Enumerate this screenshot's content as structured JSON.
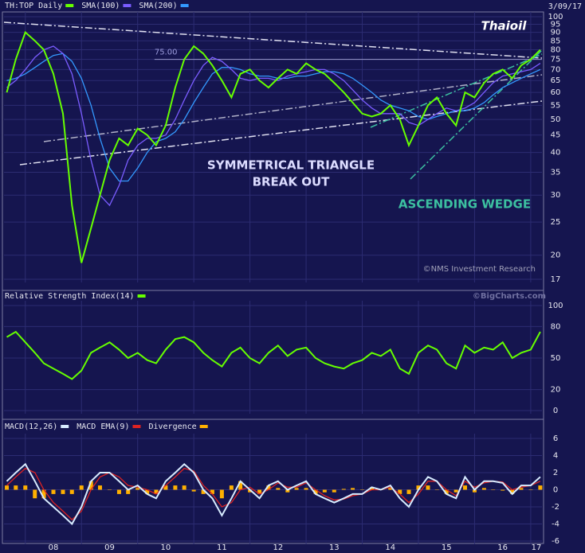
{
  "header": {
    "date": "3/09/17",
    "logo": "Thaioil",
    "copyright": "©NMS Investment Research",
    "source": "©BigCharts.com"
  },
  "chart_data": [
    {
      "type": "line",
      "log_scale": true,
      "grid": true,
      "annotations": [
        {
          "text": "SYMMETRICAL TRIANGLE"
        },
        {
          "text": "BREAK OUT"
        },
        {
          "text": "ASCENDING WEDGE"
        }
      ],
      "level": {
        "value": 75,
        "label": "75.00"
      },
      "xlim": [
        2007.62,
        2017.2
      ],
      "x": [
        2007.67,
        2007.83,
        2008.0,
        2008.17,
        2008.33,
        2008.5,
        2008.67,
        2008.83,
        2009.0,
        2009.17,
        2009.33,
        2009.5,
        2009.67,
        2009.83,
        2010.0,
        2010.17,
        2010.33,
        2010.5,
        2010.67,
        2010.83,
        2011.0,
        2011.17,
        2011.33,
        2011.5,
        2011.67,
        2011.83,
        2012.0,
        2012.17,
        2012.33,
        2012.5,
        2012.67,
        2012.83,
        2013.0,
        2013.17,
        2013.33,
        2013.5,
        2013.67,
        2013.83,
        2014.0,
        2014.17,
        2014.33,
        2014.5,
        2014.67,
        2014.83,
        2015.0,
        2015.17,
        2015.33,
        2015.5,
        2015.67,
        2015.83,
        2016.0,
        2016.17,
        2016.33,
        2016.5,
        2016.67,
        2016.83,
        2017.0,
        2017.17
      ],
      "ylim": [
        17,
        100
      ],
      "yticks": [
        17,
        20,
        25,
        30,
        35,
        40,
        45,
        50,
        55,
        60,
        65,
        70,
        75,
        80,
        85,
        90,
        95,
        100
      ],
      "series": [
        {
          "name": "TH:TOP Daily",
          "color": "#66ff00",
          "values": [
            60,
            75,
            90,
            85,
            80,
            68,
            52,
            28,
            19,
            24,
            30,
            38,
            44,
            42,
            47,
            45,
            42,
            48,
            62,
            75,
            82,
            78,
            72,
            65,
            58,
            68,
            70,
            65,
            62,
            66,
            70,
            68,
            73,
            70,
            68,
            64,
            60,
            56,
            52,
            51,
            52,
            55,
            50,
            42,
            48,
            55,
            58,
            52,
            48,
            60,
            58,
            64,
            68,
            70,
            66,
            72,
            75,
            80
          ]
        },
        {
          "name": "SMA(100)",
          "color": "#7a5cff",
          "values": [
            62,
            65,
            70,
            76,
            80,
            82,
            78,
            68,
            52,
            38,
            30,
            28,
            32,
            38,
            42,
            44,
            44,
            45,
            50,
            57,
            65,
            72,
            76,
            74,
            70,
            66,
            65,
            66,
            66,
            65,
            67,
            68,
            69,
            70,
            70,
            68,
            65,
            61,
            57,
            54,
            52,
            52,
            52,
            49,
            48,
            50,
            52,
            54,
            53,
            54,
            56,
            60,
            64,
            67,
            68,
            69,
            70,
            73
          ]
        },
        {
          "name": "SMA(200)",
          "color": "#3399ff",
          "values": [
            65,
            66,
            68,
            71,
            74,
            77,
            78,
            74,
            66,
            55,
            44,
            36,
            33,
            33,
            36,
            40,
            43,
            44,
            46,
            50,
            56,
            62,
            68,
            71,
            71,
            70,
            68,
            67,
            67,
            66,
            66,
            67,
            67,
            68,
            69,
            69,
            68,
            66,
            63,
            60,
            57,
            55,
            54,
            53,
            51,
            50,
            51,
            52,
            53,
            53,
            54,
            56,
            59,
            62,
            64,
            66,
            68,
            70
          ]
        }
      ]
    },
    {
      "type": "line",
      "grid": true,
      "xlim": [
        2007.62,
        2017.2
      ],
      "x": [
        2007.67,
        2007.83,
        2008.0,
        2008.17,
        2008.33,
        2008.5,
        2008.67,
        2008.83,
        2009.0,
        2009.17,
        2009.33,
        2009.5,
        2009.67,
        2009.83,
        2010.0,
        2010.17,
        2010.33,
        2010.5,
        2010.67,
        2010.83,
        2011.0,
        2011.17,
        2011.33,
        2011.5,
        2011.67,
        2011.83,
        2012.0,
        2012.17,
        2012.33,
        2012.5,
        2012.67,
        2012.83,
        2013.0,
        2013.17,
        2013.33,
        2013.5,
        2013.67,
        2013.83,
        2014.0,
        2014.17,
        2014.33,
        2014.5,
        2014.67,
        2014.83,
        2015.0,
        2015.17,
        2015.33,
        2015.5,
        2015.67,
        2015.83,
        2016.0,
        2016.17,
        2016.33,
        2016.5,
        2016.67,
        2016.83,
        2017.0,
        2017.17
      ],
      "ylim": [
        0,
        100
      ],
      "yticks": [
        0,
        20,
        50,
        80,
        100
      ],
      "series": [
        {
          "name": "Relative Strength Index(14)",
          "color": "#66ff00",
          "values": [
            70,
            75,
            65,
            55,
            45,
            40,
            35,
            30,
            38,
            55,
            60,
            65,
            58,
            50,
            55,
            48,
            45,
            58,
            68,
            70,
            65,
            55,
            48,
            42,
            55,
            60,
            50,
            45,
            55,
            62,
            52,
            58,
            60,
            50,
            45,
            42,
            40,
            45,
            48,
            55,
            52,
            58,
            40,
            35,
            55,
            62,
            58,
            45,
            40,
            62,
            55,
            60,
            58,
            65,
            50,
            55,
            58,
            75
          ]
        }
      ]
    },
    {
      "type": "line",
      "grid": true,
      "xlim": [
        2007.62,
        2017.2
      ],
      "x": [
        2007.67,
        2007.83,
        2008.0,
        2008.17,
        2008.33,
        2008.5,
        2008.67,
        2008.83,
        2009.0,
        2009.17,
        2009.33,
        2009.5,
        2009.67,
        2009.83,
        2010.0,
        2010.17,
        2010.33,
        2010.5,
        2010.67,
        2010.83,
        2011.0,
        2011.17,
        2011.33,
        2011.5,
        2011.67,
        2011.83,
        2012.0,
        2012.17,
        2012.33,
        2012.5,
        2012.67,
        2012.83,
        2013.0,
        2013.17,
        2013.33,
        2013.5,
        2013.67,
        2013.83,
        2014.0,
        2014.17,
        2014.33,
        2014.5,
        2014.67,
        2014.83,
        2015.0,
        2015.17,
        2015.33,
        2015.5,
        2015.67,
        2015.83,
        2016.0,
        2016.17,
        2016.33,
        2016.5,
        2016.67,
        2016.83,
        2017.0,
        2017.17
      ],
      "ylim": [
        -6,
        6
      ],
      "yticks": [
        -6,
        -4,
        -2,
        0,
        2,
        4,
        6
      ],
      "xticks": [
        {
          "value": 2008,
          "label": "08"
        },
        {
          "value": 2009,
          "label": "09"
        },
        {
          "value": 2010,
          "label": "10"
        },
        {
          "value": 2011,
          "label": "11"
        },
        {
          "value": 2012,
          "label": "12"
        },
        {
          "value": 2013,
          "label": "13"
        },
        {
          "value": 2014,
          "label": "14"
        },
        {
          "value": 2015,
          "label": "15"
        },
        {
          "value": 2016,
          "label": "16"
        },
        {
          "value": 2017,
          "label": "17"
        }
      ],
      "series": [
        {
          "name": "MACD(12,26)",
          "color": "#d8ecff",
          "values": [
            1,
            2,
            3,
            1,
            -1,
            -2,
            -3,
            -4,
            -2,
            1,
            2,
            2,
            1,
            0,
            0.5,
            -0.5,
            -1,
            1,
            2,
            3,
            2,
            0,
            -1,
            -3,
            -1,
            1,
            0,
            -1,
            0.5,
            1,
            0,
            0.5,
            1,
            -0.5,
            -1,
            -1.5,
            -1,
            -0.5,
            -0.5,
            0.3,
            0,
            0.5,
            -1,
            -2,
            0,
            1.5,
            1,
            -0.5,
            -1,
            1.5,
            0,
            1,
            1,
            0.8,
            -0.5,
            0.5,
            0.5,
            1.5
          ]
        },
        {
          "name": "MACD EMA(9)",
          "color": "#dd2222",
          "values": [
            0.5,
            1.5,
            2.5,
            2,
            0,
            -1.5,
            -2.5,
            -3.5,
            -2.5,
            0,
            1.5,
            2,
            1.5,
            0.5,
            0.3,
            0,
            -0.5,
            0.5,
            1.5,
            2.5,
            2.2,
            0.5,
            -0.5,
            -2,
            -1.5,
            0,
            0.3,
            -0.5,
            0,
            0.8,
            0.3,
            0.3,
            0.8,
            0,
            -0.7,
            -1.2,
            -1.1,
            -0.7,
            -0.5,
            0,
            0,
            0.3,
            -0.5,
            -1.5,
            -0.5,
            1,
            1,
            0,
            -0.7,
            1,
            0.3,
            0.8,
            1,
            0.9,
            0,
            0.3,
            0.5,
            1
          ]
        },
        {
          "name": "Divergence",
          "color": "#ffb000",
          "type": "bar",
          "values": [
            0.5,
            0.5,
            0.5,
            -1,
            -1,
            -0.5,
            -0.5,
            -0.5,
            0.5,
            1,
            0.5,
            0,
            -0.5,
            -0.5,
            0.2,
            -0.5,
            -0.5,
            0.5,
            0.5,
            0.5,
            -0.2,
            -0.5,
            -0.5,
            -1,
            0.5,
            1,
            -0.3,
            -0.5,
            0.5,
            0.2,
            -0.3,
            0.2,
            0.2,
            -0.5,
            -0.3,
            -0.3,
            0.1,
            0.2,
            0,
            0.3,
            0,
            0.2,
            -0.5,
            -0.5,
            0.5,
            0.5,
            0,
            -0.5,
            -0.3,
            0.5,
            -0.3,
            0.2,
            0,
            -0.1,
            -0.5,
            0.2,
            0,
            0.5
          ]
        }
      ]
    }
  ]
}
